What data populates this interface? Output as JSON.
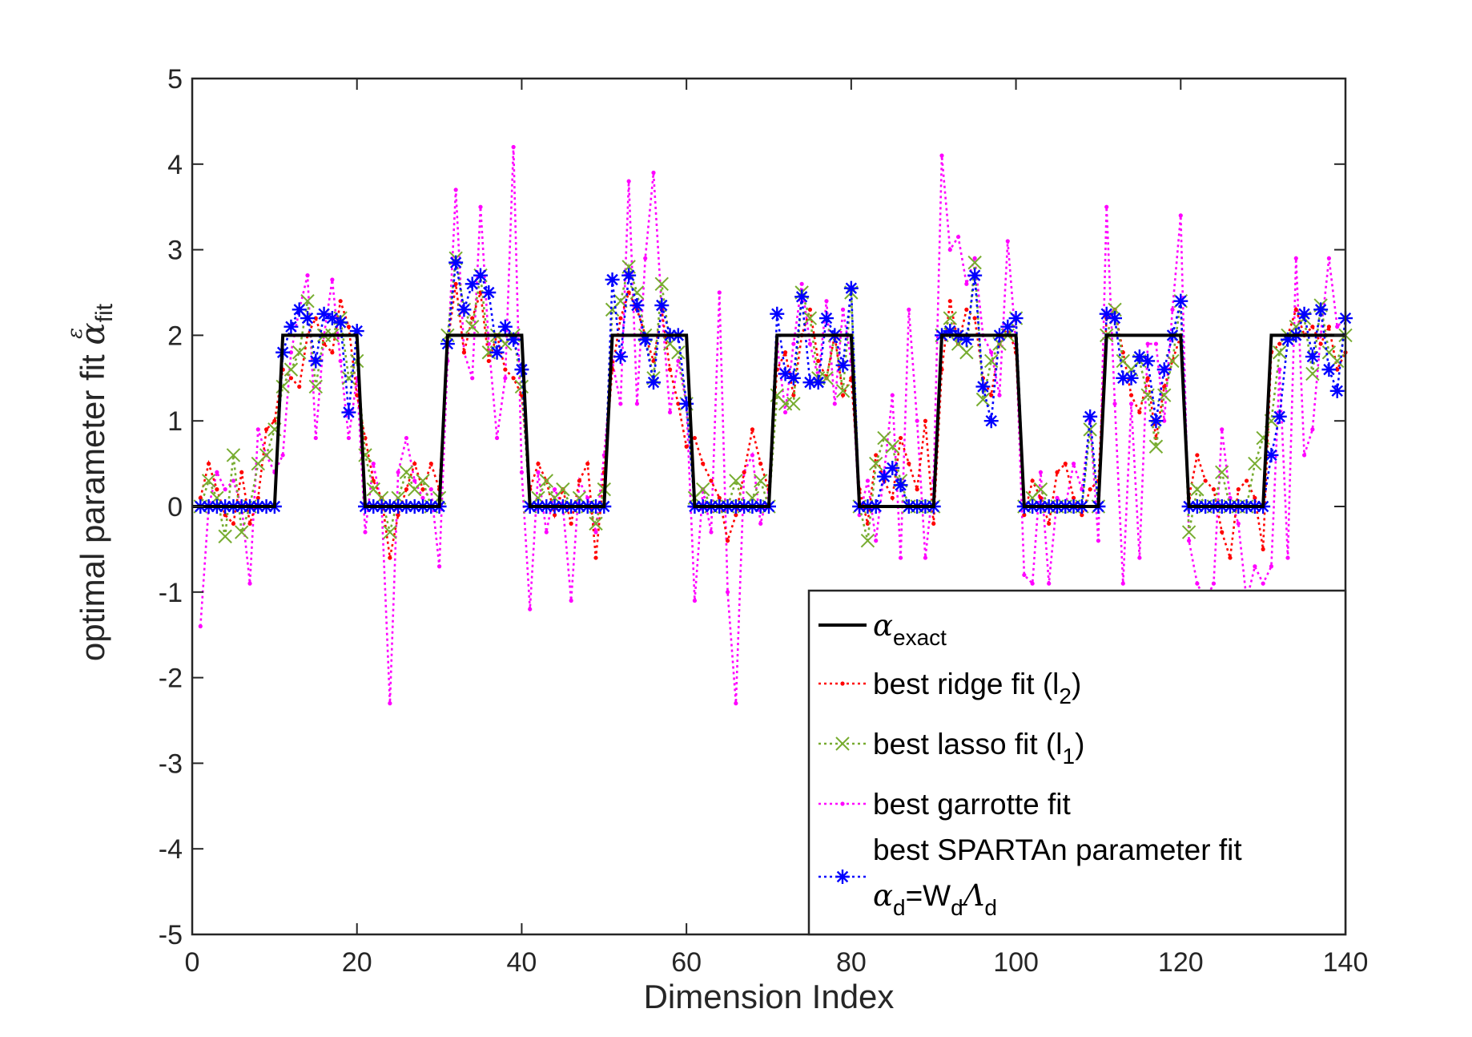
{
  "chart_data": {
    "type": "line",
    "xlabel": "Dimension Index",
    "ylabel": {
      "text": "optimal parameter fit ",
      "symbol": "α",
      "subscript": "fit",
      "superscript": "ε"
    },
    "xlim": [
      0,
      140
    ],
    "ylim": [
      -5,
      5
    ],
    "xticks": [
      0,
      20,
      40,
      60,
      80,
      100,
      120,
      140
    ],
    "yticks": [
      -5,
      -4,
      -3,
      -2,
      -1,
      0,
      1,
      2,
      3,
      4,
      5
    ],
    "grid": false,
    "legend_position": "bottom-right",
    "colors": {
      "exact": "#000000",
      "ridge": "#ff0000",
      "lasso": "#77ac30",
      "garrotte": "#ff00ff",
      "spartan": "#0000ff"
    },
    "legend": [
      {
        "key": "exact",
        "parts": [
          {
            "t": "α",
            "greek": true
          },
          {
            "t": "exact",
            "sub": true
          }
        ]
      },
      {
        "key": "ridge",
        "parts": [
          {
            "t": "best ridge fit (l"
          },
          {
            "t": "2",
            "sub": true
          },
          {
            "t": ")"
          }
        ]
      },
      {
        "key": "lasso",
        "parts": [
          {
            "t": "best lasso fit (l"
          },
          {
            "t": "1",
            "sub": true
          },
          {
            "t": ")"
          }
        ]
      },
      {
        "key": "garrotte",
        "parts": [
          {
            "t": "best garrotte fit"
          }
        ]
      },
      {
        "key": "spartan",
        "line1": "best SPARTAn parameter fit",
        "parts": [
          {
            "t": "α",
            "greek": true
          },
          {
            "t": "d",
            "sub": true
          },
          {
            "t": "=W"
          },
          {
            "t": "d",
            "sub": true
          },
          {
            "t": "Λ",
            "greek": true
          },
          {
            "t": "d",
            "sub": true
          }
        ]
      }
    ],
    "x": [
      1,
      2,
      3,
      4,
      5,
      6,
      7,
      8,
      9,
      10,
      11,
      12,
      13,
      14,
      15,
      16,
      17,
      18,
      19,
      20,
      21,
      22,
      23,
      24,
      25,
      26,
      27,
      28,
      29,
      30,
      31,
      32,
      33,
      34,
      35,
      36,
      37,
      38,
      39,
      40,
      41,
      42,
      43,
      44,
      45,
      46,
      47,
      48,
      49,
      50,
      51,
      52,
      53,
      54,
      55,
      56,
      57,
      58,
      59,
      60,
      61,
      62,
      63,
      64,
      65,
      66,
      67,
      68,
      69,
      70,
      71,
      72,
      73,
      74,
      75,
      76,
      77,
      78,
      79,
      80,
      81,
      82,
      83,
      84,
      85,
      86,
      87,
      88,
      89,
      90,
      91,
      92,
      93,
      94,
      95,
      96,
      97,
      98,
      99,
      100,
      101,
      102,
      103,
      104,
      105,
      106,
      107,
      108,
      109,
      110,
      111,
      112,
      113,
      114,
      115,
      116,
      117,
      118,
      119,
      120,
      121,
      122,
      123,
      124,
      125,
      126,
      127,
      128,
      129,
      130,
      131,
      132,
      133,
      134,
      135,
      136,
      137,
      138,
      139,
      140
    ],
    "series": [
      {
        "key": "exact",
        "name": "α_exact",
        "style": "solid",
        "x": [
          0,
          10,
          11,
          20,
          21,
          30,
          31,
          40,
          41,
          50,
          51,
          60,
          61,
          70,
          71,
          80,
          81,
          90,
          91,
          100,
          101,
          110,
          111,
          120,
          121,
          130,
          131,
          140
        ],
        "values": [
          0,
          0,
          2,
          2,
          0,
          0,
          2,
          2,
          0,
          0,
          2,
          2,
          0,
          0,
          2,
          2,
          0,
          0,
          2,
          2,
          0,
          0,
          2,
          2,
          0,
          0,
          2,
          2
        ]
      },
      {
        "key": "ridge",
        "name": "best ridge fit (l2)",
        "style": "dotted",
        "marker": "dot",
        "values": [
          0.1,
          0.5,
          0.2,
          -0.1,
          -0.2,
          0.4,
          -0.2,
          0.1,
          0.9,
          1.0,
          1.6,
          1.5,
          1.4,
          2.0,
          2.2,
          1.9,
          1.8,
          2.4,
          2.1,
          1.3,
          0.8,
          0.3,
          0.1,
          -0.6,
          -0.1,
          0.2,
          0.5,
          0.2,
          0.5,
          0.2,
          1.9,
          2.6,
          1.8,
          2.2,
          2.5,
          1.7,
          2.0,
          1.6,
          1.5,
          1.3,
          0.2,
          0.5,
          0.3,
          -0.1,
          0.2,
          -0.2,
          0.3,
          0.5,
          -0.6,
          0.4,
          1.6,
          2.2,
          2.5,
          2.3,
          2.0,
          1.7,
          2.3,
          1.6,
          1.2,
          0.7,
          0.8,
          0.5,
          0.3,
          0.1,
          -0.4,
          -0.1,
          0.4,
          0.9,
          0.5,
          0.2,
          1.6,
          1.8,
          1.3,
          2.0,
          2.3,
          1.7,
          1.5,
          2.0,
          1.3,
          1.5,
          0.2,
          -0.2,
          0.6,
          0.3,
          0.1,
          0.8,
          0.5,
          0.2,
          1.0,
          -0.2,
          1.6,
          2.4,
          1.9,
          2.3,
          2.2,
          1.5,
          1.3,
          1.9,
          2.1,
          1.8,
          -0.1,
          0.3,
          0.1,
          -0.2,
          0.4,
          0.5,
          0.1,
          -0.1,
          0.2,
          0.3,
          2.2,
          2.3,
          1.8,
          1.3,
          1.1,
          1.5,
          0.8,
          1.4,
          1.7,
          2.0,
          0.1,
          0.6,
          0.3,
          0.2,
          -0.3,
          -0.6,
          0.2,
          0.3,
          0.1,
          -0.5,
          1.8,
          1.9,
          2.0,
          2.3,
          2.0,
          2.1,
          1.9,
          2.1,
          1.6,
          1.8
        ]
      },
      {
        "key": "lasso",
        "name": "best lasso fit (l1)",
        "style": "dotted",
        "marker": "x",
        "values": [
          0.0,
          0.3,
          0.1,
          -0.35,
          0.6,
          -0.3,
          0.0,
          0.5,
          0.6,
          0.9,
          1.4,
          1.6,
          1.8,
          2.4,
          1.4,
          2.0,
          2.0,
          2.2,
          1.5,
          1.7,
          0.6,
          0.2,
          0.1,
          -0.3,
          0.1,
          0.4,
          0.2,
          0.3,
          0.0,
          0.1,
          2.0,
          2.9,
          2.3,
          2.1,
          2.7,
          1.8,
          2.0,
          1.9,
          2.0,
          1.4,
          0.0,
          0.1,
          0.3,
          0.1,
          0.2,
          0.0,
          0.1,
          0.0,
          -0.2,
          0.2,
          2.3,
          2.4,
          2.8,
          2.5,
          2.0,
          1.5,
          2.6,
          1.9,
          1.8,
          1.2,
          0.1,
          0.2,
          0.0,
          0.0,
          0.0,
          0.3,
          0.0,
          0.1,
          0.3,
          0.0,
          1.3,
          1.2,
          1.2,
          2.5,
          2.2,
          1.5,
          1.5,
          2.0,
          1.35,
          2.5,
          0.0,
          -0.4,
          0.5,
          0.8,
          0.7,
          0.3,
          0.0,
          0.0,
          0.0,
          0.0,
          2.0,
          2.2,
          1.9,
          1.8,
          2.85,
          1.25,
          1.7,
          1.9,
          2.0,
          2.2,
          0.0,
          0.1,
          0.2,
          0.0,
          0.0,
          0.0,
          0.0,
          0.0,
          0.9,
          0.0,
          2.0,
          2.3,
          1.7,
          1.6,
          1.7,
          1.3,
          0.7,
          1.3,
          1.7,
          2.4,
          -0.3,
          0.2,
          0.0,
          0.0,
          0.4,
          0.0,
          0.0,
          0.0,
          0.5,
          0.8,
          1.0,
          1.8,
          2.0,
          2.1,
          2.2,
          1.55,
          2.35,
          1.8,
          1.7,
          2.0
        ]
      },
      {
        "key": "garrotte",
        "name": "best garrotte fit",
        "style": "dotted",
        "marker": "dot",
        "values": [
          -1.4,
          0.0,
          0.4,
          0.2,
          0.3,
          0.0,
          -0.9,
          0.9,
          0.6,
          0.4,
          0.6,
          1.8,
          2.3,
          2.7,
          0.8,
          2.0,
          2.65,
          1.7,
          0.8,
          1.5,
          -0.3,
          0.5,
          0.0,
          -2.3,
          0.4,
          0.8,
          0.3,
          0.1,
          0.2,
          -0.7,
          1.7,
          3.7,
          1.8,
          1.5,
          3.5,
          1.9,
          0.8,
          1.5,
          4.2,
          0.4,
          -1.2,
          0.4,
          -0.3,
          0.2,
          0.0,
          -1.1,
          0.3,
          0.1,
          -0.3,
          0.6,
          1.7,
          1.2,
          3.8,
          1.2,
          2.9,
          3.9,
          2.3,
          1.1,
          1.7,
          1.2,
          -1.1,
          0.2,
          -0.3,
          2.5,
          -1.0,
          -2.3,
          0.4,
          0.6,
          -0.2,
          0.2,
          1.9,
          1.1,
          1.9,
          2.6,
          1.9,
          1.5,
          2.4,
          1.2,
          2.3,
          1.7,
          -0.1,
          0.3,
          -0.4,
          0.4,
          1.3,
          -0.6,
          2.3,
          1.0,
          -0.6,
          0.3,
          4.1,
          3.0,
          3.15,
          2.6,
          2.9,
          2.0,
          1.8,
          1.3,
          3.1,
          1.9,
          -0.8,
          -0.9,
          0.4,
          -0.9,
          0.1,
          0.0,
          0.5,
          0.2,
          1.0,
          -0.4,
          3.5,
          1.2,
          -0.9,
          1.2,
          -0.6,
          1.9,
          1.9,
          1.0,
          2.3,
          3.4,
          -0.4,
          -0.9,
          -1.1,
          -0.9,
          0.9,
          0.1,
          -0.2,
          -1.1,
          -0.7,
          -0.9,
          -0.7,
          1.6,
          -0.6,
          2.9,
          0.6,
          0.9,
          2.0,
          2.9,
          2.1,
          2.2
        ]
      },
      {
        "key": "spartan",
        "name": "best SPARTAn parameter fit",
        "style": "dotted",
        "marker": "asterisk",
        "values": [
          0,
          0,
          0,
          0,
          0,
          0,
          0,
          0,
          0,
          0,
          1.8,
          2.1,
          2.3,
          2.2,
          1.7,
          2.25,
          2.2,
          2.15,
          1.1,
          2.05,
          0,
          0,
          0,
          0,
          0,
          0,
          0,
          0,
          0,
          0,
          1.9,
          2.85,
          2.3,
          2.6,
          2.7,
          2.5,
          1.8,
          2.1,
          1.95,
          1.6,
          0,
          0,
          0,
          0,
          0,
          0,
          0,
          0,
          0,
          0,
          2.65,
          1.75,
          2.7,
          2.35,
          1.95,
          1.45,
          2.35,
          2.0,
          2.0,
          1.2,
          0,
          0,
          0,
          0,
          0,
          0,
          0,
          0,
          0,
          0,
          2.25,
          1.55,
          1.5,
          2.45,
          1.45,
          1.45,
          2.2,
          2.0,
          1.65,
          2.55,
          0,
          0,
          0,
          0.35,
          0.45,
          0.25,
          0,
          0,
          0,
          0,
          2.0,
          2.05,
          2.0,
          1.95,
          2.7,
          1.4,
          1.0,
          2.0,
          2.1,
          2.2,
          0,
          0,
          0,
          0,
          0,
          0,
          0,
          0,
          1.05,
          0,
          2.25,
          2.2,
          1.5,
          1.5,
          1.75,
          1.7,
          1.0,
          1.6,
          2.0,
          2.4,
          0,
          0,
          0,
          0,
          0,
          0,
          0,
          0,
          0,
          0,
          0.6,
          1.05,
          1.95,
          2.0,
          2.25,
          1.75,
          2.3,
          1.6,
          1.35,
          2.2
        ]
      }
    ]
  }
}
